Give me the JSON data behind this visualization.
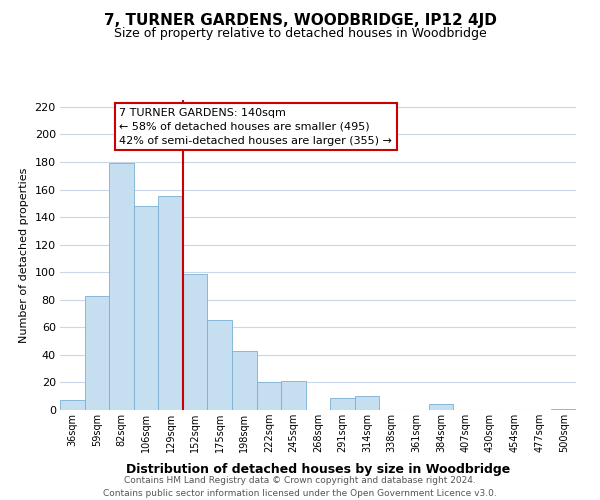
{
  "title": "7, TURNER GARDENS, WOODBRIDGE, IP12 4JD",
  "subtitle": "Size of property relative to detached houses in Woodbridge",
  "xlabel": "Distribution of detached houses by size in Woodbridge",
  "ylabel": "Number of detached properties",
  "bar_color": "#c5dff0",
  "bar_edge_color": "#7bafd4",
  "categories": [
    "36sqm",
    "59sqm",
    "82sqm",
    "106sqm",
    "129sqm",
    "152sqm",
    "175sqm",
    "198sqm",
    "222sqm",
    "245sqm",
    "268sqm",
    "291sqm",
    "314sqm",
    "338sqm",
    "361sqm",
    "384sqm",
    "407sqm",
    "430sqm",
    "454sqm",
    "477sqm",
    "500sqm"
  ],
  "values": [
    7,
    83,
    179,
    148,
    155,
    99,
    65,
    43,
    20,
    21,
    0,
    9,
    10,
    0,
    0,
    4,
    0,
    0,
    0,
    0,
    1
  ],
  "ylim": [
    0,
    225
  ],
  "yticks": [
    0,
    20,
    40,
    60,
    80,
    100,
    120,
    140,
    160,
    180,
    200,
    220
  ],
  "vline_x": 4.5,
  "vline_color": "#cc0000",
  "annotation_title": "7 TURNER GARDENS: 140sqm",
  "annotation_line1": "← 58% of detached houses are smaller (495)",
  "annotation_line2": "42% of semi-detached houses are larger (355) →",
  "annotation_box_color": "#ffffff",
  "annotation_box_edge": "#cc0000",
  "footer_line1": "Contains HM Land Registry data © Crown copyright and database right 2024.",
  "footer_line2": "Contains public sector information licensed under the Open Government Licence v3.0.",
  "background_color": "#ffffff",
  "grid_color": "#c8d8e8"
}
